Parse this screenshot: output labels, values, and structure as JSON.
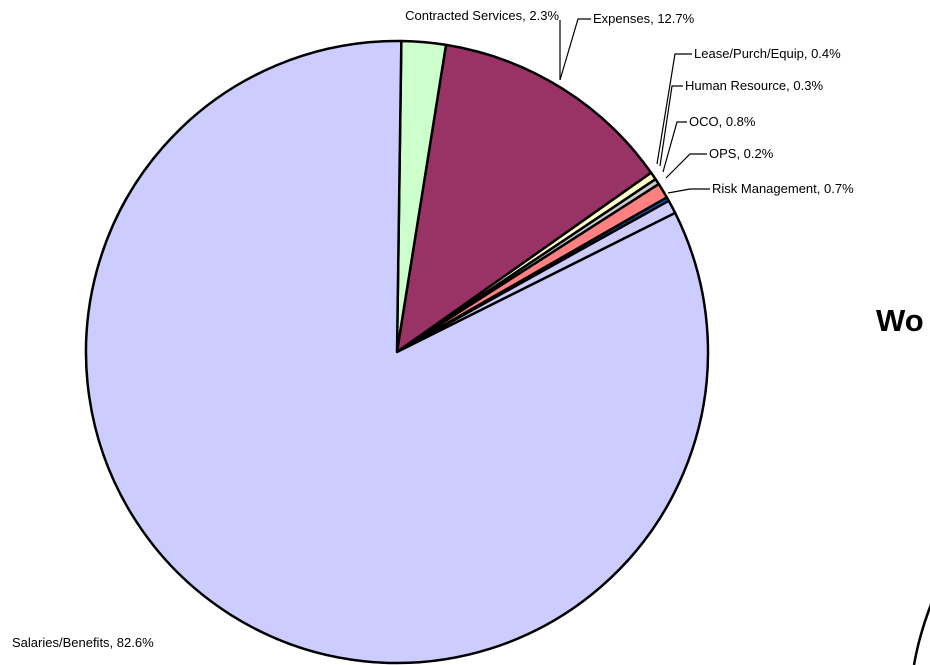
{
  "chart_data": {
    "type": "pie",
    "slices": [
      {
        "label": "Contracted Services",
        "value": 2.3,
        "color": "#ccffcc"
      },
      {
        "label": "Expenses",
        "value": 12.7,
        "color": "#993366"
      },
      {
        "label": "Lease/Purch/Equip",
        "value": 0.4,
        "color": "#ffffcc"
      },
      {
        "label": "Human Resource",
        "value": 0.3,
        "color": "#cccccc"
      },
      {
        "label": "OCO",
        "value": 0.8,
        "color": "#ff8080"
      },
      {
        "label": "OPS",
        "value": 0.2,
        "color": "#0066cc"
      },
      {
        "label": "Risk Management",
        "value": 0.7,
        "color": "#ccccff"
      },
      {
        "label": "Salaries/Benefits",
        "value": 82.6,
        "color": "#ccccff"
      }
    ],
    "label_format": "{label}, {value}%",
    "partial_title": "Wo"
  }
}
